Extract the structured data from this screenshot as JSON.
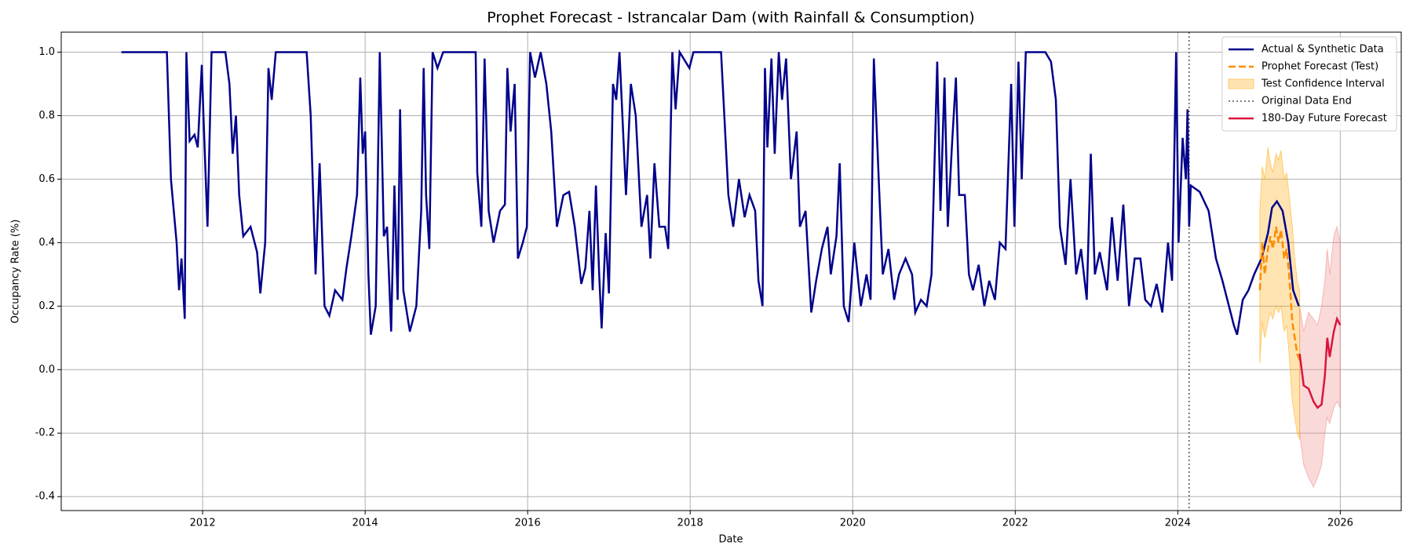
{
  "chart_data": {
    "type": "line",
    "title": "Prophet Forecast - Istrancalar Dam (with Rainfall & Consumption)",
    "x_label": "Date",
    "y_label": "Occupancy Rate (%)",
    "xlim": [
      2010.26,
      2026.75
    ],
    "ylim": [
      -0.444,
      1.063
    ],
    "xticks": [
      2012,
      2014,
      2016,
      2018,
      2020,
      2022,
      2024,
      2026
    ],
    "yticks": [
      -0.4,
      -0.2,
      {
        "value": 0,
        "label": "0.0"
      },
      0.2,
      0.4,
      0.6,
      0.8,
      {
        "value": 1,
        "label": "1.0"
      }
    ],
    "grid": true,
    "legend": "upper right",
    "series": [
      {
        "name": "Actual & Synthetic Data",
        "type": "line",
        "color": "#00008b",
        "style": "solid",
        "x": [
          2011.0,
          2011.56,
          2011.61,
          2011.68,
          2011.71,
          2011.74,
          2011.78,
          2011.8,
          2011.82,
          2011.84,
          2011.9,
          2011.94,
          2011.99,
          2012.01,
          2012.06,
          2012.11,
          2012.28,
          2012.33,
          2012.37,
          2012.41,
          2012.45,
          2012.5,
          2012.59,
          2012.67,
          2012.71,
          2012.77,
          2012.81,
          2012.85,
          2012.9,
          2013.28,
          2013.33,
          2013.39,
          2013.44,
          2013.5,
          2013.56,
          2013.63,
          2013.72,
          2013.77,
          2013.83,
          2013.9,
          2013.94,
          2013.97,
          2014.0,
          2014.04,
          2014.07,
          2014.13,
          2014.18,
          2014.23,
          2014.27,
          2014.32,
          2014.36,
          2014.4,
          2014.43,
          2014.47,
          2014.55,
          2014.63,
          2014.69,
          2014.72,
          2014.75,
          2014.79,
          2014.83,
          2014.89,
          2014.96,
          2015.36,
          2015.38,
          2015.43,
          2015.47,
          2015.52,
          2015.58,
          2015.66,
          2015.72,
          2015.75,
          2015.79,
          2015.84,
          2015.88,
          2015.94,
          2015.99,
          2016.03,
          2016.09,
          2016.16,
          2016.23,
          2016.29,
          2016.36,
          2016.44,
          2016.51,
          2016.58,
          2016.66,
          2016.71,
          2016.76,
          2016.8,
          2016.84,
          2016.88,
          2016.91,
          2016.96,
          2017.0,
          2017.05,
          2017.09,
          2017.13,
          2017.21,
          2017.27,
          2017.33,
          2017.4,
          2017.47,
          2017.51,
          2017.56,
          2017.62,
          2017.69,
          2017.73,
          2017.78,
          2017.82,
          2017.87,
          2017.99,
          2018.04,
          2018.38,
          2018.47,
          2018.53,
          2018.6,
          2018.67,
          2018.73,
          2018.8,
          2018.84,
          2018.89,
          2018.92,
          2018.95,
          2019.0,
          2019.04,
          2019.09,
          2019.13,
          2019.18,
          2019.24,
          2019.31,
          2019.35,
          2019.42,
          2019.49,
          2019.55,
          2019.62,
          2019.69,
          2019.73,
          2019.8,
          2019.84,
          2019.89,
          2019.95,
          2020.02,
          2020.1,
          2020.17,
          2020.22,
          2020.26,
          2020.32,
          2020.37,
          2020.44,
          2020.51,
          2020.57,
          2020.65,
          2020.73,
          2020.77,
          2020.84,
          2020.91,
          2020.97,
          2021.04,
          2021.08,
          2021.13,
          2021.17,
          2021.22,
          2021.27,
          2021.31,
          2021.38,
          2021.43,
          2021.48,
          2021.55,
          2021.62,
          2021.68,
          2021.75,
          2021.81,
          2021.88,
          2021.95,
          2021.99,
          2022.04,
          2022.08,
          2022.13,
          2022.37,
          2022.44,
          2022.5,
          2022.55,
          2022.62,
          2022.68,
          2022.75,
          2022.81,
          2022.88,
          2022.93,
          2022.98,
          2023.04,
          2023.13,
          2023.19,
          2023.26,
          2023.33,
          2023.4,
          2023.47,
          2023.54,
          2023.6,
          2023.67,
          2023.74,
          2023.81,
          2023.88,
          2023.93,
          2023.98,
          2024.01,
          2024.06,
          2024.1,
          2024.12,
          2024.14,
          2024.16,
          2024.27,
          2024.38,
          2024.47,
          2024.55,
          2024.63,
          2024.69,
          2024.73,
          2024.8,
          2024.87,
          2024.94,
          2025.03,
          2025.11,
          2025.16,
          2025.22,
          2025.29,
          2025.36,
          2025.42,
          2025.49
        ],
        "values": [
          1.0,
          1.0,
          0.6,
          0.4,
          0.25,
          0.35,
          0.16,
          1.0,
          0.86,
          0.72,
          0.74,
          0.7,
          0.96,
          0.8,
          0.45,
          1.0,
          1.0,
          0.9,
          0.68,
          0.8,
          0.55,
          0.42,
          0.45,
          0.37,
          0.24,
          0.4,
          0.95,
          0.85,
          1.0,
          1.0,
          0.8,
          0.3,
          0.65,
          0.2,
          0.17,
          0.25,
          0.22,
          0.32,
          0.42,
          0.55,
          0.92,
          0.68,
          0.75,
          0.3,
          0.11,
          0.2,
          1.0,
          0.42,
          0.45,
          0.12,
          0.58,
          0.22,
          0.82,
          0.25,
          0.12,
          0.2,
          0.5,
          0.95,
          0.55,
          0.38,
          1.0,
          0.95,
          1.0,
          1.0,
          0.62,
          0.45,
          0.98,
          0.5,
          0.4,
          0.5,
          0.52,
          0.95,
          0.75,
          0.9,
          0.35,
          0.4,
          0.45,
          1.0,
          0.92,
          1.0,
          0.9,
          0.75,
          0.45,
          0.55,
          0.56,
          0.45,
          0.27,
          0.32,
          0.5,
          0.25,
          0.58,
          0.3,
          0.13,
          0.43,
          0.24,
          0.9,
          0.85,
          1.0,
          0.55,
          0.9,
          0.8,
          0.45,
          0.55,
          0.35,
          0.65,
          0.45,
          0.45,
          0.38,
          1.0,
          0.82,
          1.0,
          0.95,
          1.0,
          1.0,
          0.55,
          0.45,
          0.6,
          0.48,
          0.55,
          0.5,
          0.28,
          0.2,
          0.95,
          0.7,
          0.98,
          0.68,
          1.0,
          0.85,
          0.98,
          0.6,
          0.75,
          0.45,
          0.5,
          0.18,
          0.28,
          0.38,
          0.45,
          0.3,
          0.42,
          0.65,
          0.2,
          0.15,
          0.4,
          0.2,
          0.3,
          0.22,
          0.98,
          0.6,
          0.3,
          0.38,
          0.22,
          0.3,
          0.35,
          0.3,
          0.18,
          0.22,
          0.2,
          0.3,
          0.97,
          0.5,
          0.92,
          0.45,
          0.7,
          0.92,
          0.55,
          0.55,
          0.3,
          0.25,
          0.33,
          0.2,
          0.28,
          0.22,
          0.4,
          0.38,
          0.9,
          0.45,
          0.97,
          0.6,
          1.0,
          1.0,
          0.97,
          0.85,
          0.45,
          0.33,
          0.6,
          0.3,
          0.38,
          0.22,
          0.68,
          0.3,
          0.37,
          0.25,
          0.48,
          0.28,
          0.52,
          0.2,
          0.35,
          0.35,
          0.22,
          0.2,
          0.27,
          0.18,
          0.4,
          0.28,
          1.0,
          0.4,
          0.73,
          0.6,
          0.82,
          0.45,
          0.58,
          0.56,
          0.5,
          0.35,
          0.28,
          0.2,
          0.14,
          0.11,
          0.22,
          0.25,
          0.3,
          0.35,
          0.43,
          0.51,
          0.53,
          0.5,
          0.4,
          0.25,
          0.2
        ]
      },
      {
        "name": "Prophet Forecast (Test)",
        "type": "line",
        "color": "#ff8c00",
        "style": "dashed",
        "x": [
          2025.01,
          2025.04,
          2025.07,
          2025.11,
          2025.14,
          2025.17,
          2025.21,
          2025.24,
          2025.27,
          2025.31,
          2025.34,
          2025.37,
          2025.41,
          2025.44,
          2025.47,
          2025.5
        ],
        "values": [
          0.25,
          0.4,
          0.3,
          0.38,
          0.42,
          0.38,
          0.45,
          0.4,
          0.44,
          0.35,
          0.38,
          0.3,
          0.15,
          0.1,
          0.05,
          0.03
        ]
      },
      {
        "name": "Test Confidence Interval",
        "type": "area",
        "color": "#ffa500",
        "x": [
          2025.01,
          2025.04,
          2025.07,
          2025.11,
          2025.14,
          2025.17,
          2025.21,
          2025.24,
          2025.27,
          2025.31,
          2025.34,
          2025.37,
          2025.41,
          2025.44,
          2025.47,
          2025.5
        ],
        "lower": [
          0.02,
          0.15,
          0.1,
          0.15,
          0.18,
          0.16,
          0.2,
          0.18,
          0.2,
          0.12,
          0.14,
          0.05,
          -0.1,
          -0.15,
          -0.2,
          -0.22
        ],
        "upper": [
          0.5,
          0.64,
          0.6,
          0.7,
          0.65,
          0.62,
          0.68,
          0.66,
          0.69,
          0.6,
          0.62,
          0.55,
          0.45,
          0.35,
          0.28,
          0.25
        ]
      },
      {
        "name": "Original Data End",
        "type": "vline",
        "color": "#555555",
        "style": "dotted",
        "x": 2024.14
      },
      {
        "name": "180-Day Future Forecast",
        "type": "line",
        "color": "#dc143c",
        "style": "solid",
        "band_color": "#f08080",
        "x": [
          2025.5,
          2025.55,
          2025.61,
          2025.67,
          2025.72,
          2025.77,
          2025.81,
          2025.84,
          2025.87,
          2025.92,
          2025.96,
          2026.0
        ],
        "values": [
          0.05,
          -0.05,
          -0.06,
          -0.1,
          -0.12,
          -0.11,
          -0.02,
          0.1,
          0.04,
          0.12,
          0.16,
          0.14
        ],
        "lower": [
          -0.2,
          -0.3,
          -0.34,
          -0.37,
          -0.34,
          -0.3,
          -0.2,
          -0.15,
          -0.17,
          -0.12,
          -0.1,
          -0.12
        ],
        "upper": [
          0.2,
          0.12,
          0.18,
          0.16,
          0.14,
          0.2,
          0.28,
          0.38,
          0.3,
          0.42,
          0.45,
          0.4
        ]
      }
    ]
  }
}
